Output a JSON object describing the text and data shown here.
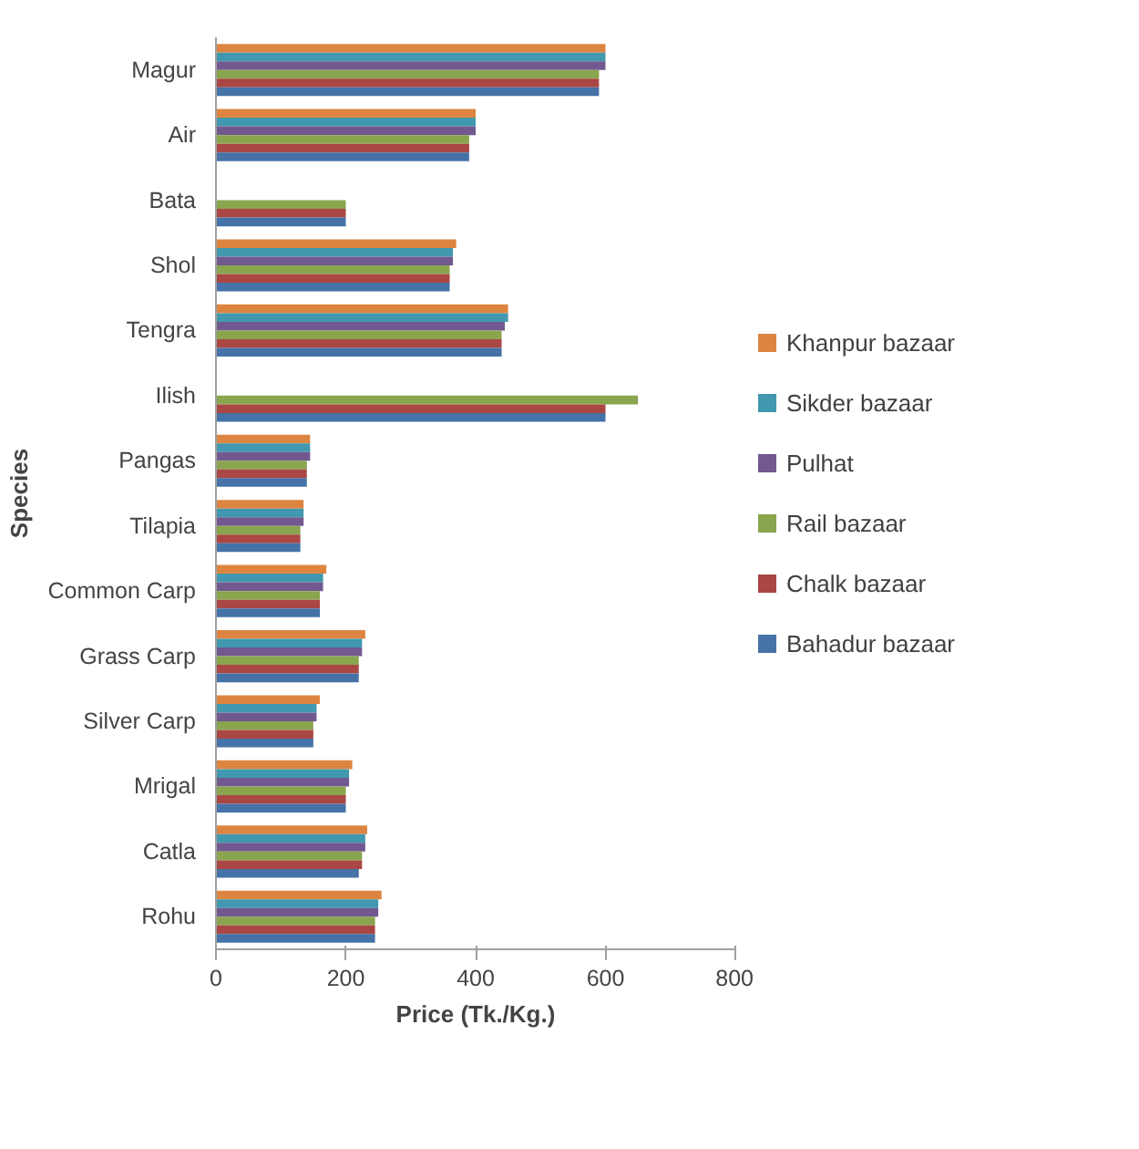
{
  "chart_data": {
    "type": "bar",
    "orientation": "horizontal",
    "xlabel": "Price (Tk./Kg.)",
    "ylabel": "Species",
    "categories": [
      "Magur",
      "Air",
      "Bata",
      "Shol",
      "Tengra",
      "Ilish",
      "Pangas",
      "Tilapia",
      "Common Carp",
      "Grass Carp",
      "Silver Carp",
      "Mrigal",
      "Catla",
      "Rohu"
    ],
    "series": [
      {
        "name": "Khanpur bazaar",
        "color": "#dd8540",
        "values": [
          600,
          400,
          null,
          370,
          450,
          null,
          145,
          135,
          170,
          230,
          160,
          210,
          233,
          255
        ]
      },
      {
        "name": "Sikder bazaar",
        "color": "#4198af",
        "values": [
          600,
          400,
          null,
          365,
          450,
          null,
          145,
          135,
          165,
          225,
          155,
          205,
          230,
          250
        ]
      },
      {
        "name": "Pulhat",
        "color": "#71588f",
        "values": [
          600,
          400,
          null,
          365,
          445,
          null,
          145,
          135,
          165,
          225,
          155,
          205,
          230,
          250
        ]
      },
      {
        "name": "Rail bazaar",
        "color": "#89a54e",
        "values": [
          590,
          390,
          200,
          360,
          440,
          650,
          140,
          130,
          160,
          220,
          150,
          200,
          225,
          245
        ]
      },
      {
        "name": "Chalk bazaar",
        "color": "#aa4643",
        "values": [
          590,
          390,
          200,
          360,
          440,
          600,
          140,
          130,
          160,
          220,
          150,
          200,
          225,
          245
        ]
      },
      {
        "name": "Bahadur bazaar",
        "color": "#4572a7",
        "values": [
          590,
          390,
          200,
          360,
          440,
          600,
          140,
          130,
          160,
          220,
          150,
          200,
          220,
          245
        ]
      }
    ],
    "xlim": [
      0,
      800
    ],
    "xticks": [
      0,
      200,
      400,
      600,
      800
    ],
    "grid": false,
    "legend": "right"
  }
}
